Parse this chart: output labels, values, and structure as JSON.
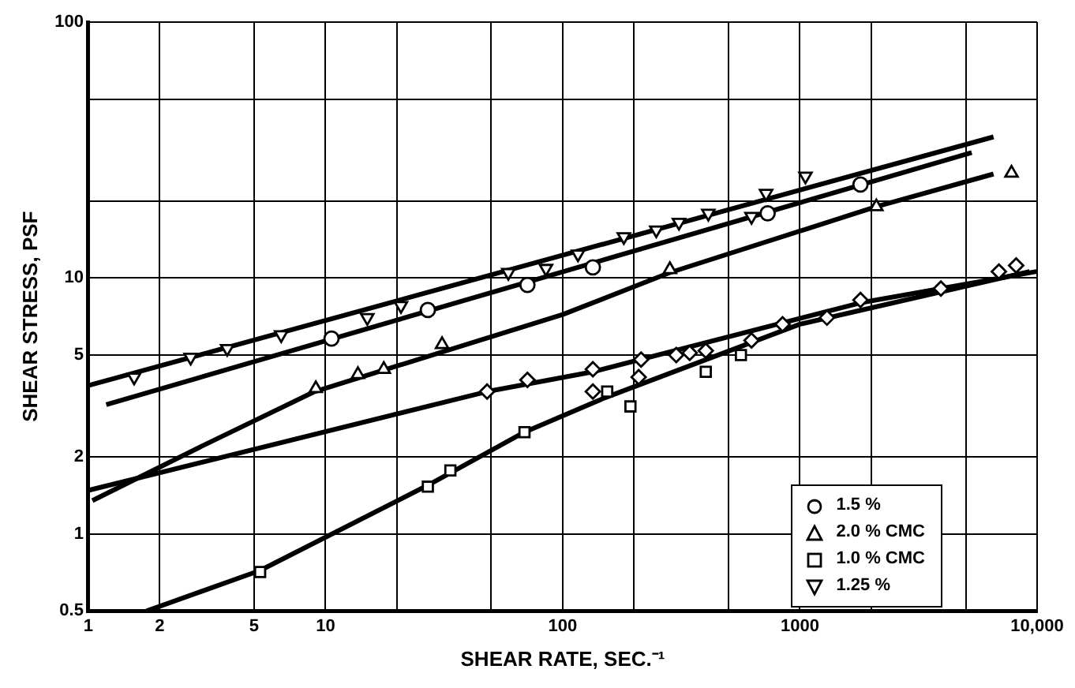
{
  "chart_data": {
    "type": "scatter",
    "xlabel": "SHEAR RATE, SEC.⁻¹",
    "ylabel": "SHEAR STRESS, PSF",
    "log": "xy",
    "grid": true,
    "legend": "bottom right",
    "xlim": [
      1,
      10000
    ],
    "ylim": [
      0.5,
      100
    ],
    "xticks": [
      1,
      2,
      5,
      10,
      {
        "value": 20,
        "label": null
      },
      {
        "value": 50,
        "label": null
      },
      100,
      {
        "value": 200,
        "label": null
      },
      {
        "value": 500,
        "label": null
      },
      1000,
      {
        "value": 2000,
        "label": null
      },
      {
        "value": 5000,
        "label": null
      },
      {
        "value": 10000,
        "label": "10,000"
      }
    ],
    "yticks": [
      0.5,
      1,
      2,
      5,
      10,
      {
        "value": 20,
        "label": null
      },
      {
        "value": 50,
        "label": null
      },
      100
    ],
    "series": [
      {
        "name": "1.5 %",
        "type": "scatter",
        "marker": "circle",
        "color": "#000000",
        "x": [
          10.6,
          27,
          71,
          134,
          731,
          1800
        ],
        "values": [
          5.8,
          7.5,
          9.4,
          11.0,
          17.9,
          23.2
        ]
      },
      {
        "name": "2.0 % CMC",
        "type": "scatter",
        "marker": "triangle",
        "color": "#000000",
        "x": [
          9.1,
          13.7,
          17.6,
          31,
          283,
          2100,
          7800
        ],
        "values": [
          3.7,
          4.2,
          4.4,
          5.5,
          10.8,
          19,
          25.7
        ]
      },
      {
        "name": "1.0 % CMC",
        "type": "scatter",
        "marker": "square",
        "color": "#000000",
        "x": [
          5.3,
          27,
          33.6,
          69,
          154,
          193,
          401,
          564
        ],
        "values": [
          0.71,
          1.53,
          1.77,
          2.5,
          3.6,
          3.15,
          4.3,
          5.0
        ]
      },
      {
        "name": "1.25 %",
        "type": "scatter",
        "marker": "triangle-down",
        "color": "#000000",
        "x": [
          1.56,
          2.7,
          3.85,
          6.5,
          15,
          20.8,
          59,
          85,
          116,
          181,
          248,
          309,
          411,
          625,
          720,
          1055
        ],
        "values": [
          4.1,
          4.9,
          5.3,
          6.0,
          7.0,
          7.8,
          10.5,
          10.9,
          12.4,
          14.5,
          15.4,
          16.5,
          17.9,
          17.4,
          21.4,
          25
        ]
      },
      {
        "type": "scatter",
        "marker": "diamond",
        "color": "#000000",
        "x": [
          48,
          71,
          134,
          134,
          209,
          214,
          301,
          343,
          401,
          625,
          845,
          1300,
          1800,
          3930,
          6900,
          8160
        ],
        "values": [
          3.6,
          4.0,
          4.4,
          3.6,
          4.1,
          4.8,
          5.0,
          5.1,
          5.2,
          5.7,
          6.6,
          7.0,
          8.2,
          9.1,
          10.6,
          11.2
        ]
      },
      {
        "type": "line",
        "marker": "none",
        "color": "#000000",
        "x": [
          1,
          6550
        ],
        "values": [
          3.8,
          35.6
        ]
      },
      {
        "type": "line",
        "marker": "none",
        "color": "#000000",
        "x": [
          1.19,
          5300
        ],
        "values": [
          3.2,
          30.9
        ]
      },
      {
        "type": "line",
        "marker": "none",
        "color": "#000000",
        "x": [
          1.04,
          3,
          9,
          100,
          283,
          2100,
          6550
        ],
        "values": [
          1.35,
          2.2,
          3.6,
          7.2,
          10.5,
          19,
          25.5
        ]
      },
      {
        "type": "line",
        "marker": "none",
        "color": "#000000",
        "x": [
          1.76,
          5.3,
          27,
          69,
          150,
          1000,
          9300
        ],
        "values": [
          0.5,
          0.72,
          1.55,
          2.5,
          3.4,
          6.6,
          10.6
        ]
      },
      {
        "type": "line",
        "marker": "none",
        "color": "#000000",
        "x": [
          1,
          48,
          134,
          1800,
          9950
        ],
        "values": [
          1.48,
          3.6,
          4.3,
          8.0,
          10.6
        ]
      }
    ]
  }
}
